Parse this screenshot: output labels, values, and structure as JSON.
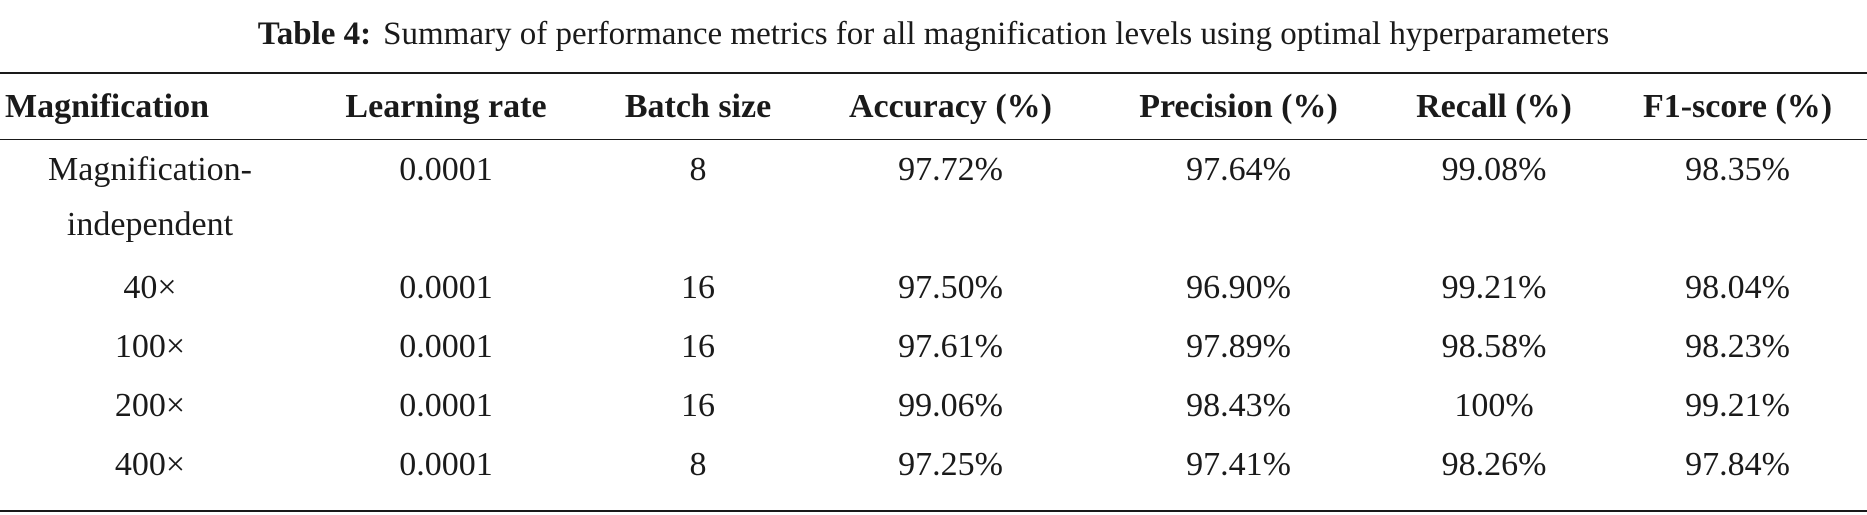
{
  "caption": {
    "label": "Table 4:",
    "text": "Summary of performance metrics for all magnification levels using optimal hyperparameters"
  },
  "table": {
    "headers": [
      "Magnification",
      "Learning rate",
      "Batch size",
      "Accuracy (%)",
      "Precision (%)",
      "Recall (%)",
      "F1-score (%)"
    ],
    "rows": [
      [
        "Magnification-\nindependent",
        "0.0001",
        "8",
        "97.72%",
        "97.64%",
        "99.08%",
        "98.35%"
      ],
      [
        "40×",
        "0.0001",
        "16",
        "97.50%",
        "96.90%",
        "99.21%",
        "98.04%"
      ],
      [
        "100×",
        "0.0001",
        "16",
        "97.61%",
        "97.89%",
        "98.58%",
        "98.23%"
      ],
      [
        "200×",
        "0.0001",
        "16",
        "99.06%",
        "98.43%",
        "100%",
        "99.21%"
      ],
      [
        "400×",
        "0.0001",
        "8",
        "97.25%",
        "97.41%",
        "98.26%",
        "97.84%"
      ]
    ],
    "first_row_label_lines": [
      "Magnification-",
      "independent"
    ]
  }
}
